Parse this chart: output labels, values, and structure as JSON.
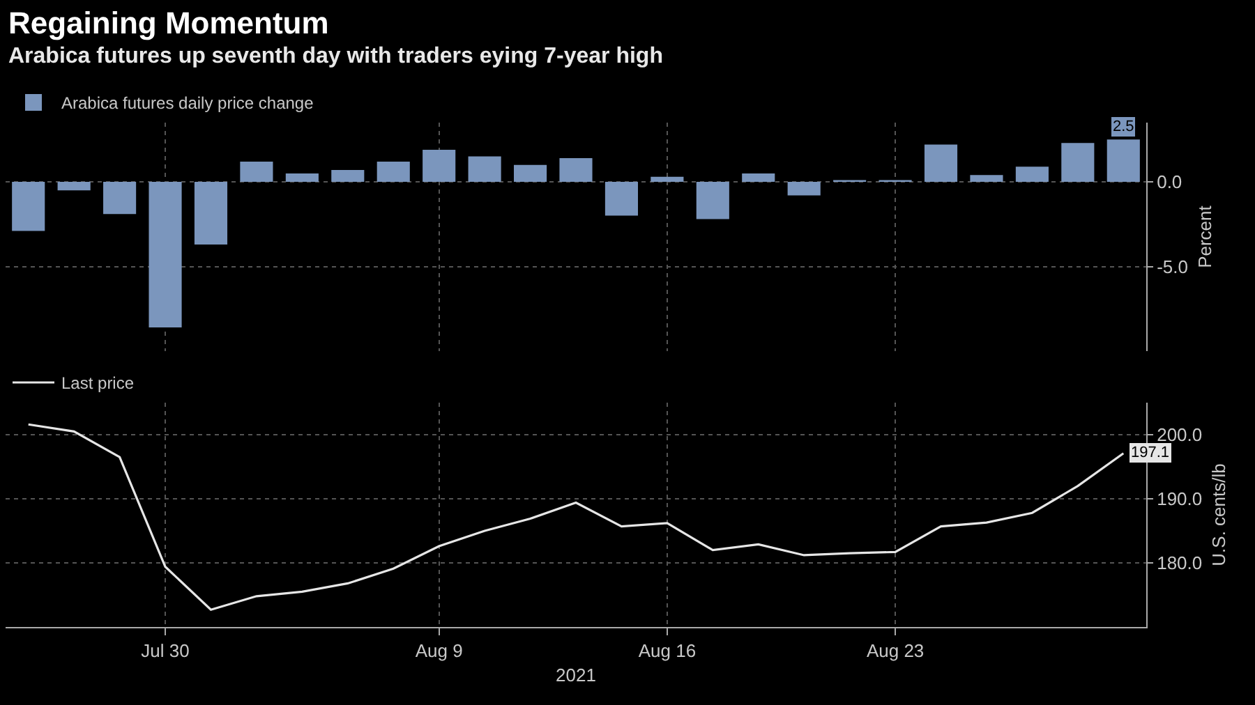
{
  "chart_data": [
    {
      "type": "bar",
      "title": "Regaining Momentum",
      "subtitle": "Arabica futures up seventh day with traders eying 7-year high",
      "ylabel": "Percent",
      "categories": [
        null,
        null,
        null,
        null,
        null,
        null,
        null,
        null,
        null,
        null,
        null,
        null,
        null,
        null,
        null,
        null,
        null,
        null,
        null,
        null,
        null,
        null,
        null,
        null,
        null
      ],
      "series": [
        {
          "name": "Arabica futures daily price change",
          "color": "#7b96bd",
          "values": [
            -2.9,
            -0.5,
            -1.9,
            -8.6,
            -3.7,
            1.2,
            0.5,
            0.7,
            1.2,
            1.9,
            1.5,
            1.0,
            1.4,
            -2.0,
            0.3,
            -2.2,
            0.5,
            -0.8,
            0.1,
            0.1,
            2.2,
            0.4,
            0.9,
            2.3,
            2.5
          ],
          "value_labels": [
            null,
            null,
            null,
            null,
            null,
            null,
            null,
            null,
            null,
            null,
            null,
            null,
            null,
            null,
            null,
            null,
            null,
            null,
            null,
            null,
            null,
            null,
            null,
            null,
            "2.5"
          ]
        }
      ],
      "ylim": [
        -10,
        3.5
      ],
      "yticks": [
        {
          "value": 0,
          "label": "0.0"
        },
        {
          "value": -5,
          "label": "-5.0"
        }
      ],
      "grid": true,
      "legend": "top left",
      "tick_labels": "y"
    },
    {
      "type": "line",
      "xlabel": "2021",
      "ylabel": "U.S. cents/lb",
      "categories": [
        null,
        null,
        null,
        "Jul 30",
        null,
        null,
        null,
        null,
        null,
        "Aug 9",
        null,
        null,
        null,
        null,
        "Aug 16",
        null,
        null,
        null,
        null,
        "Aug 23",
        null,
        null,
        null,
        null,
        null
      ],
      "series": [
        {
          "name": "Last price",
          "color": "#e6e6e6",
          "values": [
            201.6,
            200.5,
            196.5,
            179.4,
            172.7,
            174.8,
            175.5,
            176.8,
            179.1,
            182.6,
            185.0,
            186.9,
            189.4,
            185.7,
            186.2,
            182.0,
            182.9,
            181.2,
            181.5,
            181.7,
            185.7,
            186.3,
            187.8,
            192.0,
            197.1
          ],
          "value_labels": [
            null,
            null,
            null,
            null,
            null,
            null,
            null,
            null,
            null,
            null,
            null,
            null,
            null,
            null,
            null,
            null,
            null,
            null,
            null,
            null,
            null,
            null,
            null,
            null,
            "197.1"
          ]
        }
      ],
      "ylim": [
        170,
        205
      ],
      "yticks": [
        {
          "value": 180,
          "label": "180.0"
        },
        {
          "value": 190,
          "label": "190.0"
        },
        {
          "value": 200,
          "label": "200.0"
        }
      ],
      "grid": true,
      "legend": "top left"
    }
  ]
}
